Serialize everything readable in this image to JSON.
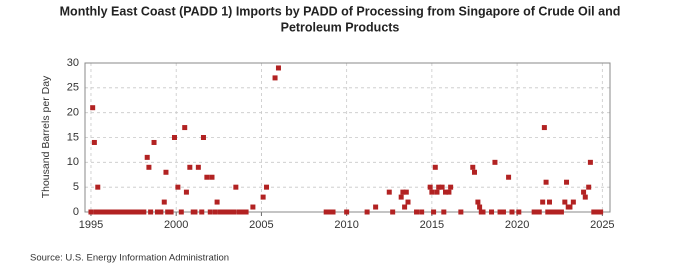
{
  "chart_data": {
    "type": "scatter",
    "title": [
      "Monthly East Coast (PADD 1) Imports by PADD of Processing from Singapore of Crude Oil and",
      "Petroleum Products"
    ],
    "y_label": "Thousand Barrels per Day",
    "source": "Source: U.S. Energy Information Administration",
    "color": "#b22222",
    "grid": true,
    "xlim": [
      1994.65,
      2025.45
    ],
    "ylim": [
      0,
      30
    ],
    "xticks": [
      1995,
      2000,
      2005,
      2010,
      2015,
      2020,
      2025
    ],
    "yticks": [
      0,
      5,
      10,
      15,
      20,
      25,
      30
    ],
    "x": [
      1995.0,
      1995.1,
      1995.2,
      1995.3,
      1995.4,
      1995.5,
      1995.7,
      1995.9,
      1996.1,
      1996.3,
      1996.5,
      1996.7,
      1996.9,
      1997.1,
      1997.3,
      1997.5,
      1997.7,
      1997.9,
      1998.1,
      1998.3,
      1998.4,
      1998.5,
      1998.7,
      1998.9,
      1999.1,
      1999.3,
      1999.4,
      1999.5,
      1999.7,
      1999.9,
      2000.1,
      2000.3,
      2000.5,
      2000.6,
      2000.8,
      2001.0,
      2001.1,
      2001.3,
      2001.5,
      2001.6,
      2001.8,
      2002.0,
      2002.1,
      2002.3,
      2002.4,
      2002.6,
      2002.8,
      2003.0,
      2003.2,
      2003.4,
      2003.5,
      2003.7,
      2003.9,
      2004.1,
      2004.5,
      2005.1,
      2005.3,
      2005.8,
      2006.0,
      2008.8,
      2008.9,
      2009.0,
      2009.1,
      2009.2,
      2010.0,
      2011.2,
      2011.7,
      2012.5,
      2012.7,
      2013.2,
      2013.3,
      2013.4,
      2013.5,
      2013.6,
      2014.1,
      2014.4,
      2014.9,
      2015.0,
      2015.1,
      2015.2,
      2015.3,
      2015.4,
      2015.6,
      2015.7,
      2015.8,
      2016.0,
      2016.1,
      2016.7,
      2017.4,
      2017.5,
      2017.7,
      2017.8,
      2017.9,
      2018.0,
      2018.5,
      2018.7,
      2019.0,
      2019.2,
      2019.5,
      2019.7,
      2020.1,
      2021.0,
      2021.1,
      2021.2,
      2021.3,
      2021.5,
      2021.6,
      2021.7,
      2021.8,
      2021.9,
      2022.0,
      2022.2,
      2022.4,
      2022.6,
      2022.8,
      2022.9,
      2023.0,
      2023.1,
      2023.3,
      2023.9,
      2024.0,
      2024.2,
      2024.3,
      2024.5,
      2024.7,
      2024.9
    ],
    "values": [
      0,
      21,
      14,
      0,
      5,
      0,
      0,
      0,
      0,
      0,
      0,
      0,
      0,
      0,
      0,
      0,
      0,
      0,
      0,
      11,
      9,
      0,
      14,
      0,
      0,
      2,
      8,
      0,
      0,
      15,
      5,
      0,
      17,
      4,
      9,
      0,
      0,
      9,
      0,
      15,
      7,
      0,
      7,
      0,
      2,
      0,
      0,
      0,
      0,
      0,
      5,
      0,
      0,
      0,
      1,
      3,
      5,
      27,
      29,
      0,
      0,
      0,
      0,
      0,
      0,
      0,
      1,
      4,
      0,
      3,
      4,
      1,
      4,
      2,
      0,
      0,
      5,
      4,
      0,
      9,
      4,
      5,
      5,
      0,
      4,
      4,
      5,
      0,
      9,
      8,
      2,
      1,
      0,
      0,
      0,
      10,
      0,
      0,
      7,
      0,
      0,
      0,
      0,
      0,
      0,
      2,
      17,
      6,
      0,
      2,
      0,
      0,
      0,
      0,
      2,
      6,
      1,
      1,
      2,
      4,
      3,
      5,
      10,
      0,
      0,
      0
    ]
  }
}
